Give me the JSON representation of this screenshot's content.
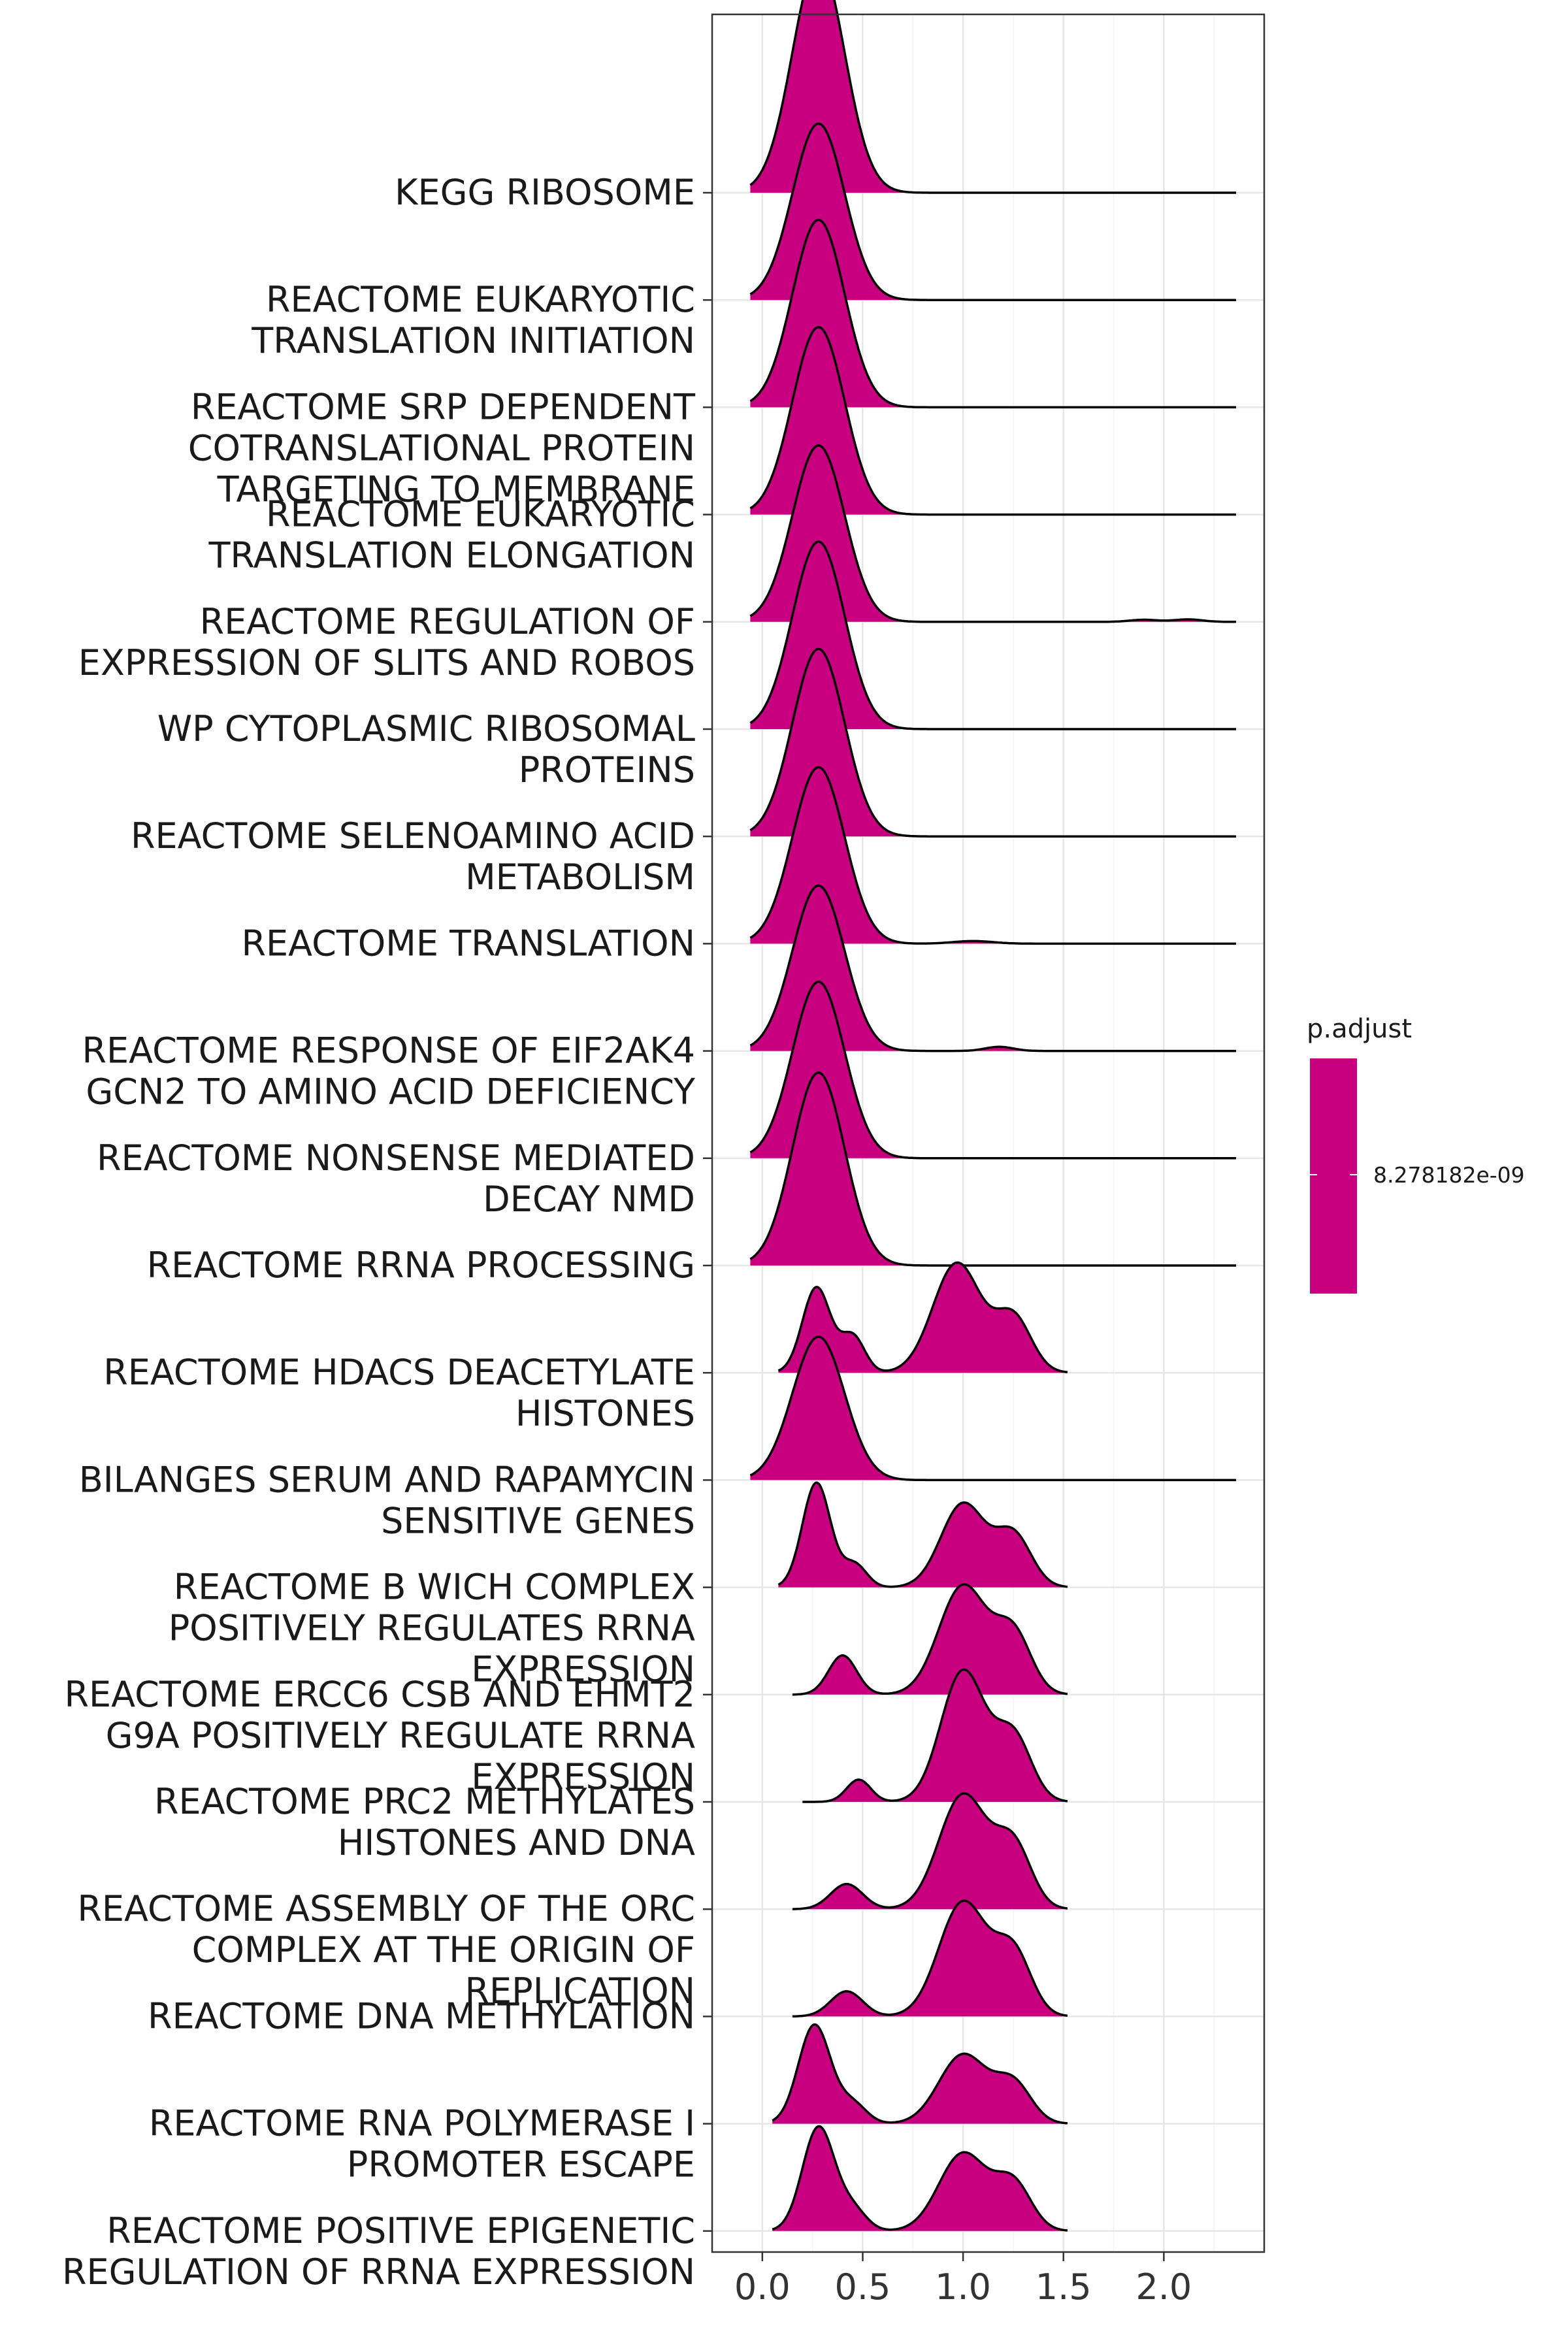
{
  "chart_data": {
    "type": "ridgeline",
    "xlim": [
      -0.25,
      2.5
    ],
    "x_ticks": [
      "0.0",
      "0.5",
      "1.0",
      "1.5",
      "2.0"
    ],
    "grid": true,
    "fill_color": "#C8007F",
    "legend": {
      "title": "p.adjust",
      "label": "8.278182e-09",
      "color": "#C8007F",
      "placement": "right"
    },
    "categories": [
      {
        "label": [
          "KEGG RIBOSOME"
        ],
        "x_range": [
          -0.06,
          2.36
        ],
        "peak": 2.1,
        "components": [
          [
            0.28,
            0.13,
            1.0
          ]
        ]
      },
      {
        "label": [
          "REACTOME EUKARYOTIC",
          "TRANSLATION INITIATION"
        ],
        "x_range": [
          -0.06,
          2.36
        ],
        "peak": 1.6,
        "components": [
          [
            0.28,
            0.13,
            1.0
          ]
        ]
      },
      {
        "label": [
          "REACTOME SRP DEPENDENT",
          "COTRANSLATIONAL PROTEIN",
          "TARGETING TO MEMBRANE"
        ],
        "x_range": [
          -0.06,
          2.36
        ],
        "peak": 1.7,
        "components": [
          [
            0.28,
            0.13,
            1.0
          ]
        ]
      },
      {
        "label": [
          "REACTOME EUKARYOTIC",
          "TRANSLATION ELONGATION"
        ],
        "x_range": [
          -0.06,
          2.36
        ],
        "peak": 1.7,
        "components": [
          [
            0.28,
            0.13,
            1.0
          ]
        ]
      },
      {
        "label": [
          "REACTOME REGULATION OF",
          "EXPRESSION OF SLITS AND ROBOS"
        ],
        "x_range": [
          -0.06,
          2.36
        ],
        "peak": 1.6,
        "components": [
          [
            0.28,
            0.13,
            1.0
          ],
          [
            1.9,
            0.07,
            0.012
          ],
          [
            2.12,
            0.07,
            0.014
          ]
        ]
      },
      {
        "label": [
          "WP CYTOPLASMIC RIBOSOMAL",
          "PROTEINS"
        ],
        "x_range": [
          -0.06,
          2.36
        ],
        "peak": 1.7,
        "components": [
          [
            0.28,
            0.13,
            1.0
          ]
        ]
      },
      {
        "label": [
          "REACTOME SELENOAMINO ACID",
          "METABOLISM"
        ],
        "x_range": [
          -0.06,
          2.36
        ],
        "peak": 1.7,
        "components": [
          [
            0.28,
            0.13,
            1.0
          ]
        ]
      },
      {
        "label": [
          "REACTOME TRANSLATION"
        ],
        "x_range": [
          -0.06,
          2.36
        ],
        "peak": 1.6,
        "components": [
          [
            0.28,
            0.13,
            1.0
          ],
          [
            1.05,
            0.1,
            0.015
          ]
        ]
      },
      {
        "label": [
          "REACTOME RESPONSE OF EIF2AK4",
          "GCN2 TO AMINO ACID DEFICIENCY"
        ],
        "x_range": [
          -0.06,
          2.36
        ],
        "peak": 1.5,
        "components": [
          [
            0.28,
            0.13,
            1.0
          ],
          [
            1.18,
            0.07,
            0.025
          ]
        ]
      },
      {
        "label": [
          "REACTOME NONSENSE MEDIATED",
          "DECAY NMD"
        ],
        "x_range": [
          -0.06,
          2.36
        ],
        "peak": 1.6,
        "components": [
          [
            0.28,
            0.13,
            1.0
          ]
        ]
      },
      {
        "label": [
          "REACTOME RRNA PROCESSING"
        ],
        "x_range": [
          -0.06,
          2.36
        ],
        "peak": 1.75,
        "components": [
          [
            0.28,
            0.13,
            1.0
          ]
        ]
      },
      {
        "label": [
          "REACTOME HDACS DEACETYLATE",
          "HISTONES"
        ],
        "x_range": [
          0.08,
          1.52
        ],
        "peak": 1.0,
        "components": [
          [
            0.27,
            0.07,
            0.7
          ],
          [
            0.45,
            0.06,
            0.3
          ],
          [
            0.97,
            0.12,
            0.9
          ],
          [
            1.25,
            0.09,
            0.45
          ]
        ]
      },
      {
        "label": [
          "BILANGES SERUM AND RAPAMYCIN",
          "SENSITIVE GENES"
        ],
        "x_range": [
          -0.06,
          2.36
        ],
        "peak": 1.3,
        "components": [
          [
            0.28,
            0.13,
            1.0
          ]
        ]
      },
      {
        "label": [
          "REACTOME B WICH COMPLEX",
          "POSITIVELY REGULATES RRNA",
          "EXPRESSION"
        ],
        "x_range": [
          0.08,
          1.52
        ],
        "peak": 0.95,
        "components": [
          [
            0.27,
            0.07,
            1.0
          ],
          [
            0.46,
            0.06,
            0.22
          ],
          [
            1.0,
            0.11,
            0.8
          ],
          [
            1.25,
            0.09,
            0.5
          ]
        ]
      },
      {
        "label": [
          "REACTOME ERCC6 CSB AND EHMT2",
          "G9A POSITIVELY REGULATE RRNA",
          "EXPRESSION"
        ],
        "x_range": [
          0.15,
          1.52
        ],
        "peak": 1.0,
        "components": [
          [
            0.4,
            0.07,
            0.36
          ],
          [
            1.0,
            0.12,
            1.0
          ],
          [
            1.25,
            0.09,
            0.55
          ]
        ]
      },
      {
        "label": [
          "REACTOME PRC2 METHYLATES",
          "HISTONES AND DNA"
        ],
        "x_range": [
          0.2,
          1.52
        ],
        "peak": 1.2,
        "components": [
          [
            0.48,
            0.06,
            0.17
          ],
          [
            1.0,
            0.11,
            1.0
          ],
          [
            1.25,
            0.09,
            0.5
          ]
        ]
      },
      {
        "label": [
          "REACTOME ASSEMBLY OF THE ORC",
          "COMPLEX AT THE ORIGIN OF",
          "REPLICATION"
        ],
        "x_range": [
          0.15,
          1.52
        ],
        "peak": 1.05,
        "components": [
          [
            0.42,
            0.08,
            0.22
          ],
          [
            1.0,
            0.12,
            1.0
          ],
          [
            1.25,
            0.09,
            0.55
          ]
        ]
      },
      {
        "label": [
          "REACTOME DNA METHYLATION"
        ],
        "x_range": [
          0.15,
          1.52
        ],
        "peak": 1.05,
        "components": [
          [
            0.42,
            0.08,
            0.22
          ],
          [
            1.0,
            0.12,
            1.0
          ],
          [
            1.25,
            0.09,
            0.55
          ]
        ]
      },
      {
        "label": [
          "REACTOME RNA POLYMERASE I",
          "PROMOTER ESCAPE"
        ],
        "x_range": [
          0.05,
          1.52
        ],
        "peak": 0.9,
        "components": [
          [
            0.26,
            0.08,
            1.0
          ],
          [
            0.45,
            0.07,
            0.2
          ],
          [
            1.0,
            0.12,
            0.7
          ],
          [
            1.25,
            0.09,
            0.4
          ]
        ]
      },
      {
        "label": [
          "REACTOME POSITIVE EPIGENETIC",
          "REGULATION OF RRNA EXPRESSION"
        ],
        "x_range": [
          0.05,
          1.52
        ],
        "peak": 0.95,
        "components": [
          [
            0.28,
            0.08,
            1.0
          ],
          [
            0.45,
            0.07,
            0.2
          ],
          [
            1.0,
            0.12,
            0.75
          ],
          [
            1.25,
            0.09,
            0.45
          ]
        ]
      }
    ]
  }
}
